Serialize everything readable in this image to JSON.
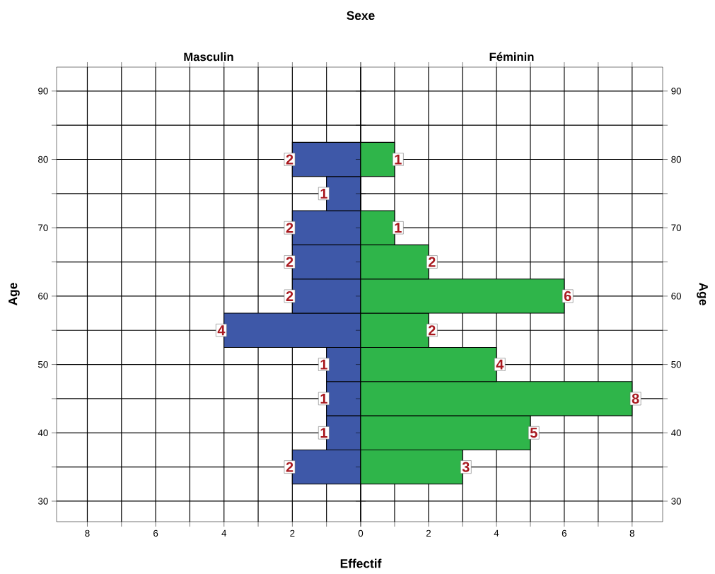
{
  "chart_data": [
    {
      "type": "histogram",
      "orientation": "horizontal",
      "title": "Masculin",
      "xlabel": "Effectif",
      "ylabel": "Age",
      "annotations": [
        "Sexe"
      ],
      "color": "#3e58a8",
      "grid": true,
      "bins": [
        32.5,
        37.5,
        42.5,
        47.5,
        52.5,
        57.5,
        62.5,
        67.5,
        72.5,
        77.5,
        82.5
      ],
      "values": [
        2,
        1,
        1,
        1,
        4,
        2,
        2,
        2,
        1,
        2
      ],
      "value_labels": [
        "2",
        "1",
        "1",
        "1",
        "4",
        "2",
        "2",
        "2",
        "1",
        "2"
      ],
      "xlim": [
        8.9,
        0
      ],
      "xticks": [
        0,
        {
          "value": 1,
          "label": null
        },
        2,
        {
          "value": 3,
          "label": null
        },
        4,
        {
          "value": 5,
          "label": null
        },
        6,
        {
          "value": 7,
          "label": null
        },
        8
      ],
      "ylim": [
        27,
        93.5
      ],
      "yticks": [
        30,
        {
          "value": 35,
          "label": null
        },
        40,
        {
          "value": 45,
          "label": null
        },
        50,
        {
          "value": 55,
          "label": null
        },
        60,
        {
          "value": 65,
          "label": null
        },
        70,
        {
          "value": 75,
          "label": null
        },
        80,
        {
          "value": 85,
          "label": null
        },
        90
      ]
    },
    {
      "type": "histogram",
      "orientation": "horizontal",
      "title": "Féminin",
      "ylabel": "Age",
      "color": "#2fb54a",
      "grid": true,
      "bins": [
        32.5,
        37.5,
        42.5,
        47.5,
        52.5,
        57.5,
        62.5,
        67.5,
        72.5,
        77.5,
        82.5
      ],
      "values": [
        3,
        5,
        8,
        4,
        2,
        6,
        2,
        1,
        0,
        1
      ],
      "value_labels": [
        "3",
        "5",
        "8",
        "4",
        "2",
        "6",
        "2",
        "1",
        null,
        "1"
      ],
      "xlim": [
        0,
        8.9
      ],
      "xticks": [
        {
          "value": 0,
          "label": null
        },
        {
          "value": 1,
          "label": null
        },
        2,
        {
          "value": 3,
          "label": null
        },
        4,
        {
          "value": 5,
          "label": null
        },
        6,
        {
          "value": 7,
          "label": null
        },
        8
      ],
      "ylim": [
        27,
        93.5
      ],
      "yticks": [
        30,
        {
          "value": 35,
          "label": null
        },
        40,
        {
          "value": 45,
          "label": null
        },
        50,
        {
          "value": 55,
          "label": null
        },
        60,
        {
          "value": 65,
          "label": null
        },
        70,
        {
          "value": 75,
          "label": null
        },
        80,
        {
          "value": 85,
          "label": null
        },
        90
      ]
    }
  ]
}
